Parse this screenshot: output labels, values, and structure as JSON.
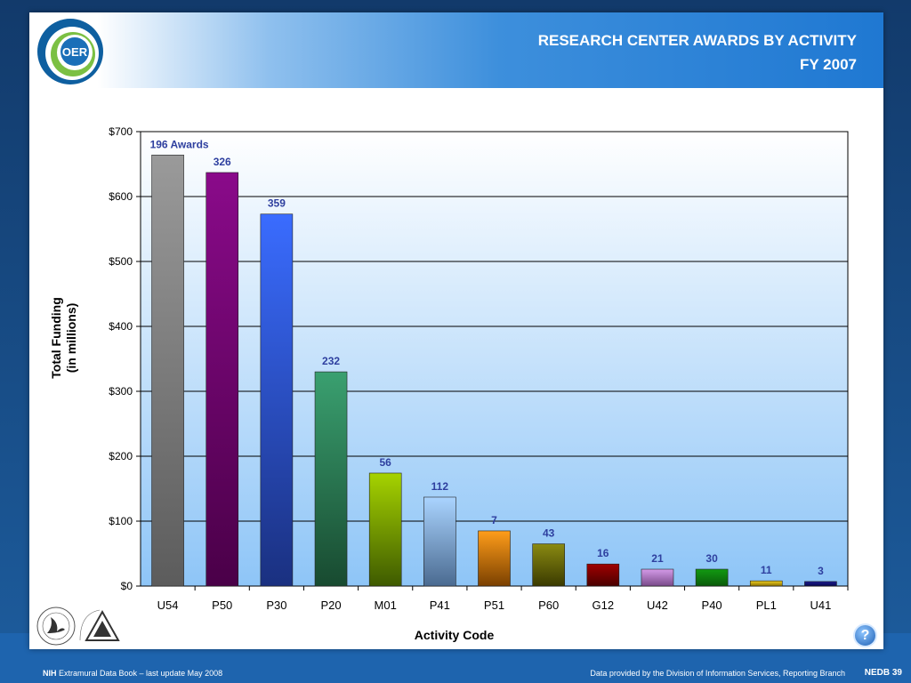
{
  "header": {
    "title_line1": "RESEARCH CENTER AWARDS BY ACTIVITY",
    "title_line2": "FY 2007",
    "logo_text": "OER"
  },
  "footer": {
    "left_bold": "NIH",
    "left_text": " Extramural Data Book – last update May 2008",
    "right_text": "Data provided by the Division of Information Services, Reporting Branch",
    "page": "NEDB 39"
  },
  "help_button": {
    "label": "?"
  },
  "seals": {
    "nih_text": "NATIONAL INSTITUTES OF HEALTH"
  },
  "colors": {
    "plot_bg_top": "#ffffff",
    "plot_bg_bottom": "#8ec5f7",
    "label_color": "#2e3f9f"
  },
  "chart_data": {
    "type": "bar",
    "title": "",
    "xlabel": "Activity Code",
    "ylabel": "Total Funding (in millions)",
    "ylabel_lines": [
      "Total Funding",
      "(in millions)"
    ],
    "ylim": [
      0,
      700
    ],
    "ytick_values": [
      0,
      100,
      200,
      300,
      400,
      500,
      600,
      700
    ],
    "ytick_labels": [
      "$0",
      "$100",
      "$200",
      "$300",
      "$400",
      "$500",
      "$600",
      "$700"
    ],
    "grid": true,
    "categories": [
      "U54",
      "P50",
      "P30",
      "P20",
      "M01",
      "P41",
      "P51",
      "P60",
      "G12",
      "U42",
      "P40",
      "PL1",
      "U41"
    ],
    "values": [
      664,
      637,
      573,
      330,
      174,
      137,
      85,
      65,
      34,
      26,
      26,
      8,
      7
    ],
    "data_labels": [
      "196 Awards",
      "326",
      "359",
      "232",
      "56",
      "112",
      "7",
      "43",
      "16",
      "21",
      "30",
      "11",
      "3"
    ],
    "bar_colors": [
      [
        "#9a9a9a",
        "#5c5c5c"
      ],
      [
        "#8a0a8a",
        "#4a0048"
      ],
      [
        "#3a6cff",
        "#1a3080"
      ],
      [
        "#3aa070",
        "#184a30"
      ],
      [
        "#a6d300",
        "#3e5a00"
      ],
      [
        "#aad4ff",
        "#4a6a90"
      ],
      [
        "#ff9d1a",
        "#7a4000"
      ],
      [
        "#8a8a12",
        "#3a3a00"
      ],
      [
        "#a00000",
        "#4a0000"
      ],
      [
        "#d49be8",
        "#7a4a8a"
      ],
      [
        "#129a12",
        "#0a5a0a"
      ],
      [
        "#f0d020",
        "#8a7000"
      ],
      [
        "#1a1a90",
        "#0a0a50"
      ]
    ]
  }
}
